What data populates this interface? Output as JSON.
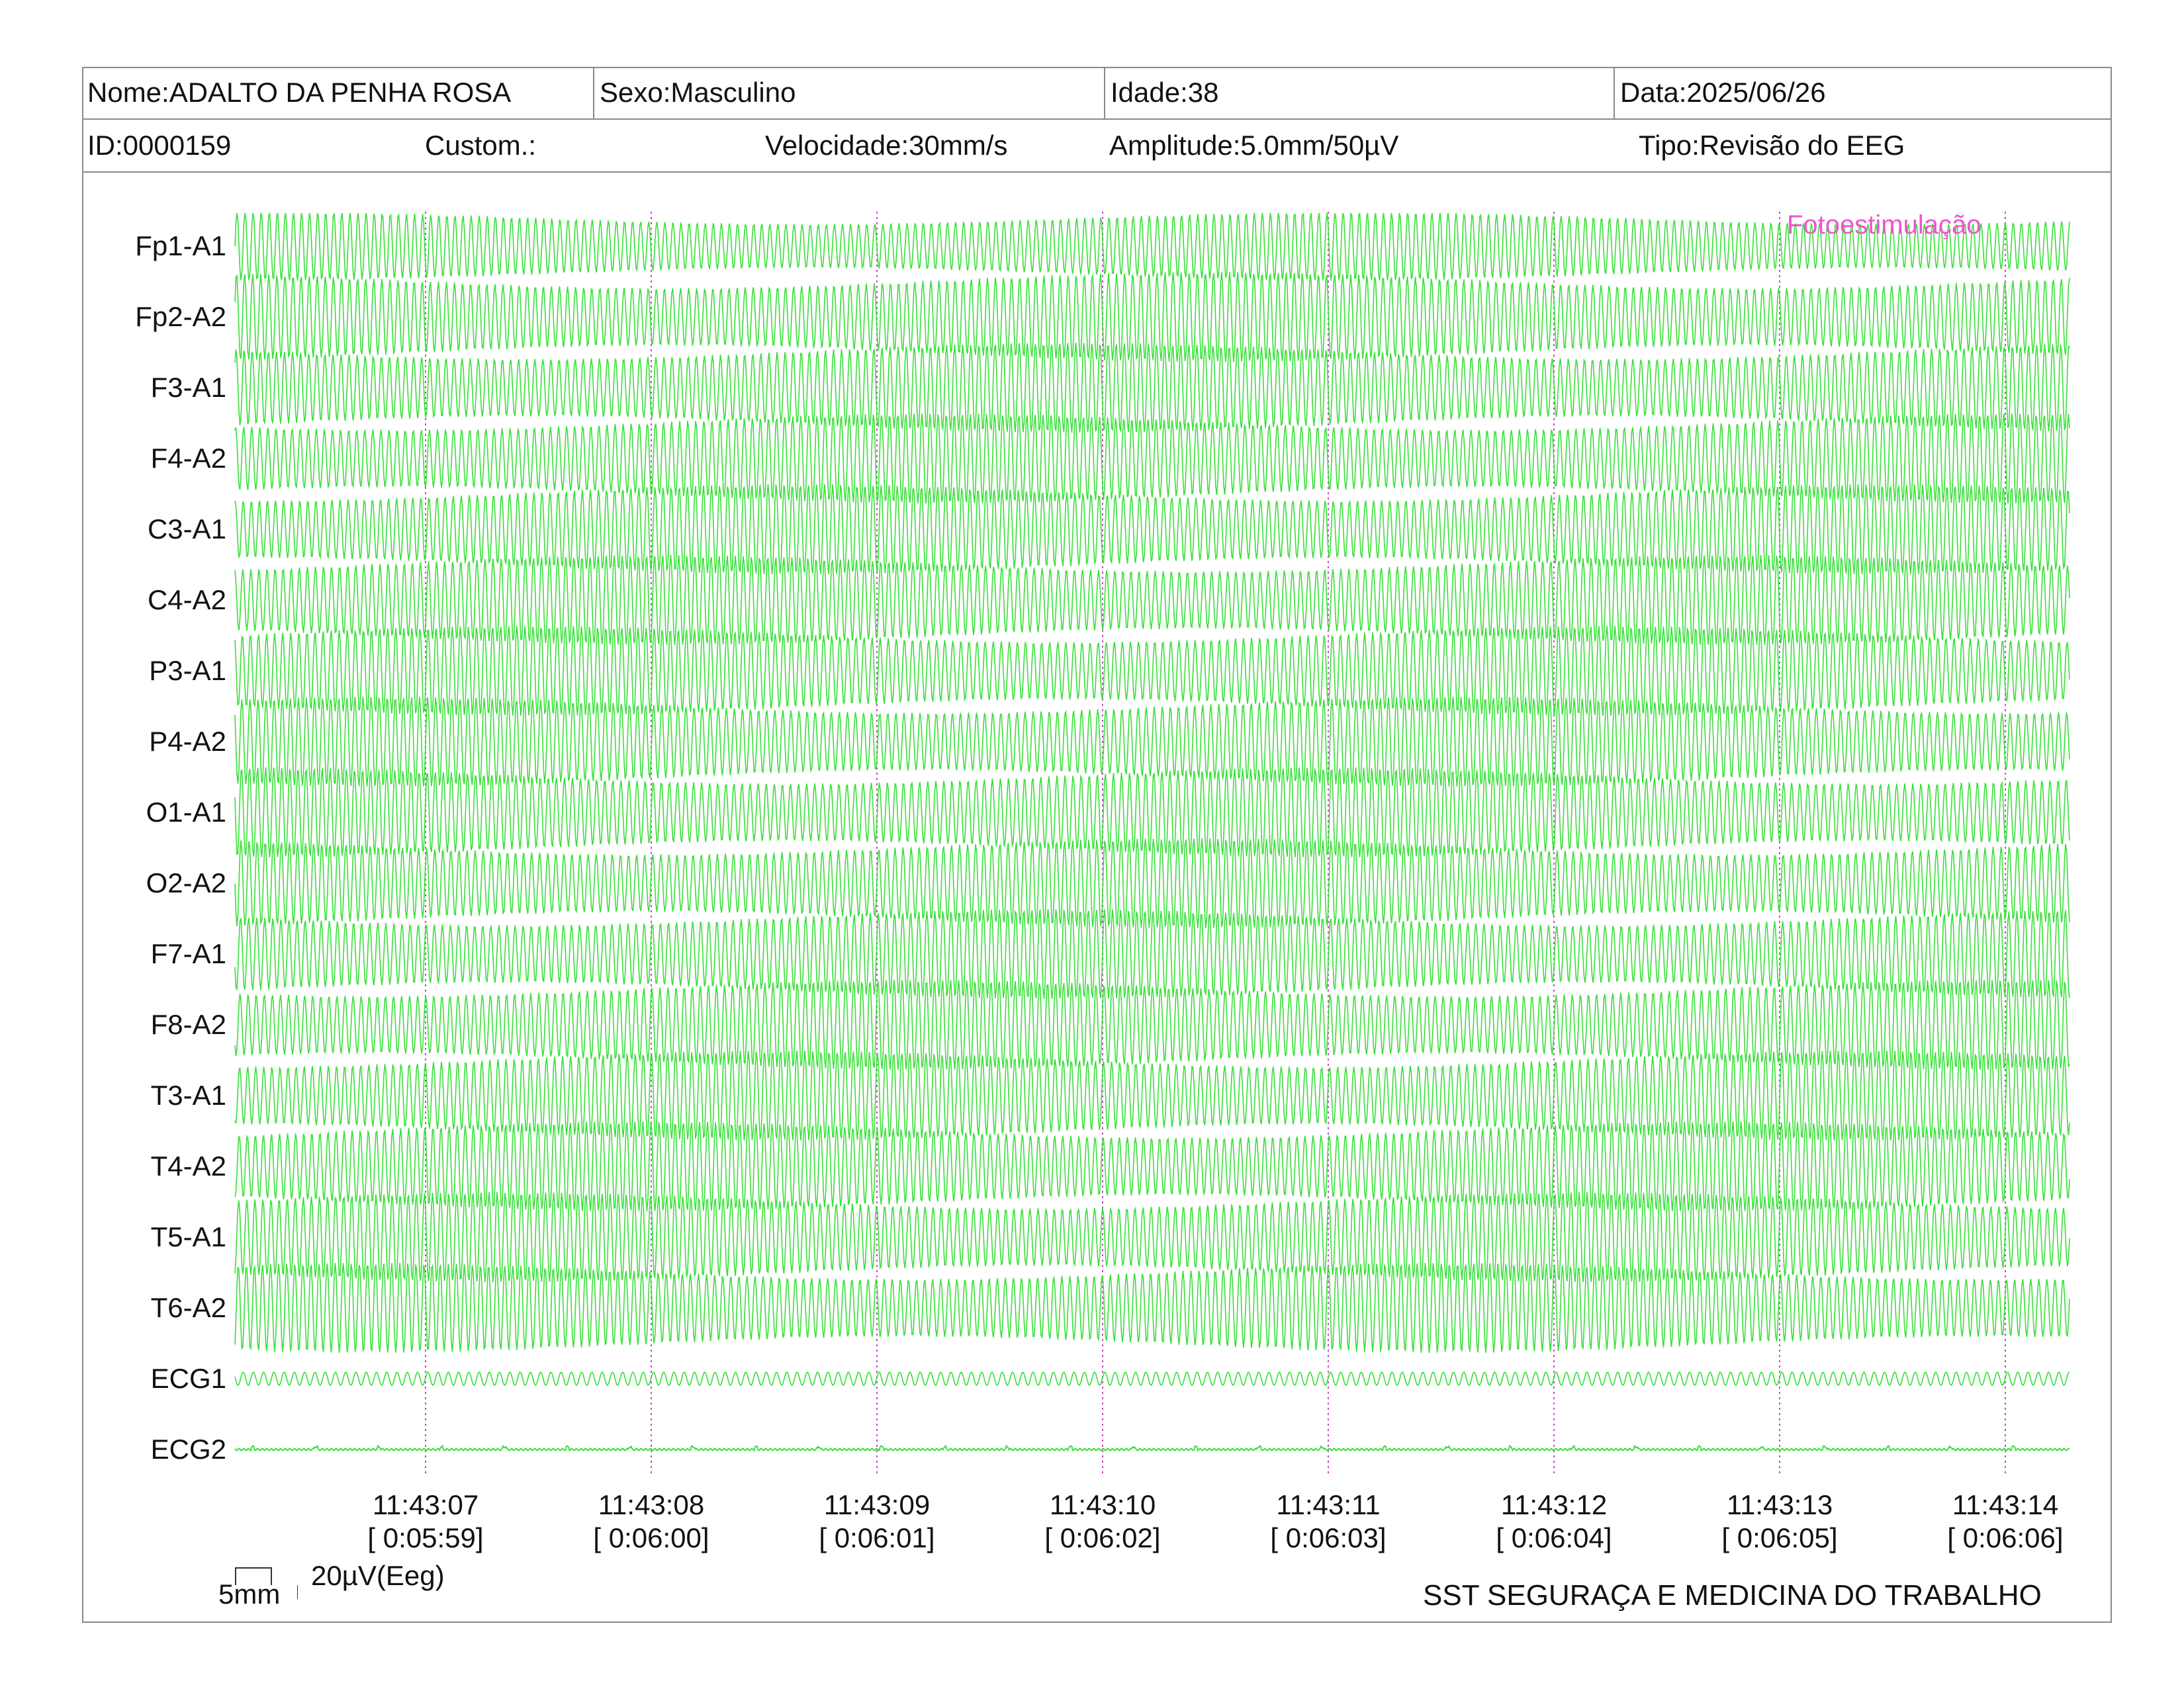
{
  "header": {
    "nome": "Nome:ADALTO DA PENHA ROSA",
    "sexo": "Sexo:Masculino",
    "idade": "Idade:38",
    "data": "Data:2025/06/26",
    "id": "ID:0000159",
    "custom": "Custom.:",
    "velocidade": "Velocidade:30mm/s",
    "amplitude": "Amplitude:5.0mm/50µV",
    "tipo": "Tipo:Revisão do EEG"
  },
  "channels": [
    "Fp1-A1",
    "Fp2-A2",
    "F3-A1",
    "F4-A2",
    "C3-A1",
    "C4-A2",
    "P3-A1",
    "P4-A2",
    "O1-A1",
    "O2-A2",
    "F7-A1",
    "F8-A2",
    "T3-A1",
    "T4-A2",
    "T5-A1",
    "T6-A2",
    "ECG1",
    "ECG2"
  ],
  "event_label": "Fotoestimulação",
  "time_marks": [
    {
      "clock": "11:43:07",
      "elapsed": "[ 0:05:59]"
    },
    {
      "clock": "11:43:08",
      "elapsed": "[ 0:06:00]"
    },
    {
      "clock": "11:43:09",
      "elapsed": "[ 0:06:01]"
    },
    {
      "clock": "11:43:10",
      "elapsed": "[ 0:06:02]"
    },
    {
      "clock": "11:43:11",
      "elapsed": "[ 0:06:03]"
    },
    {
      "clock": "11:43:12",
      "elapsed": "[ 0:06:04]"
    },
    {
      "clock": "11:43:13",
      "elapsed": "[ 0:06:05]"
    },
    {
      "clock": "11:43:14",
      "elapsed": "[ 0:06:06]"
    }
  ],
  "scale": {
    "time": "5mm",
    "amplitude": "20µV(Eeg)"
  },
  "footer": "SST SEGURAÇA E MEDICINA DO TRABALHO",
  "colors": {
    "trace": "#22dd22",
    "marker": "#cc44cc",
    "event": "#ee55cc",
    "border": "#8a8a8a"
  }
}
